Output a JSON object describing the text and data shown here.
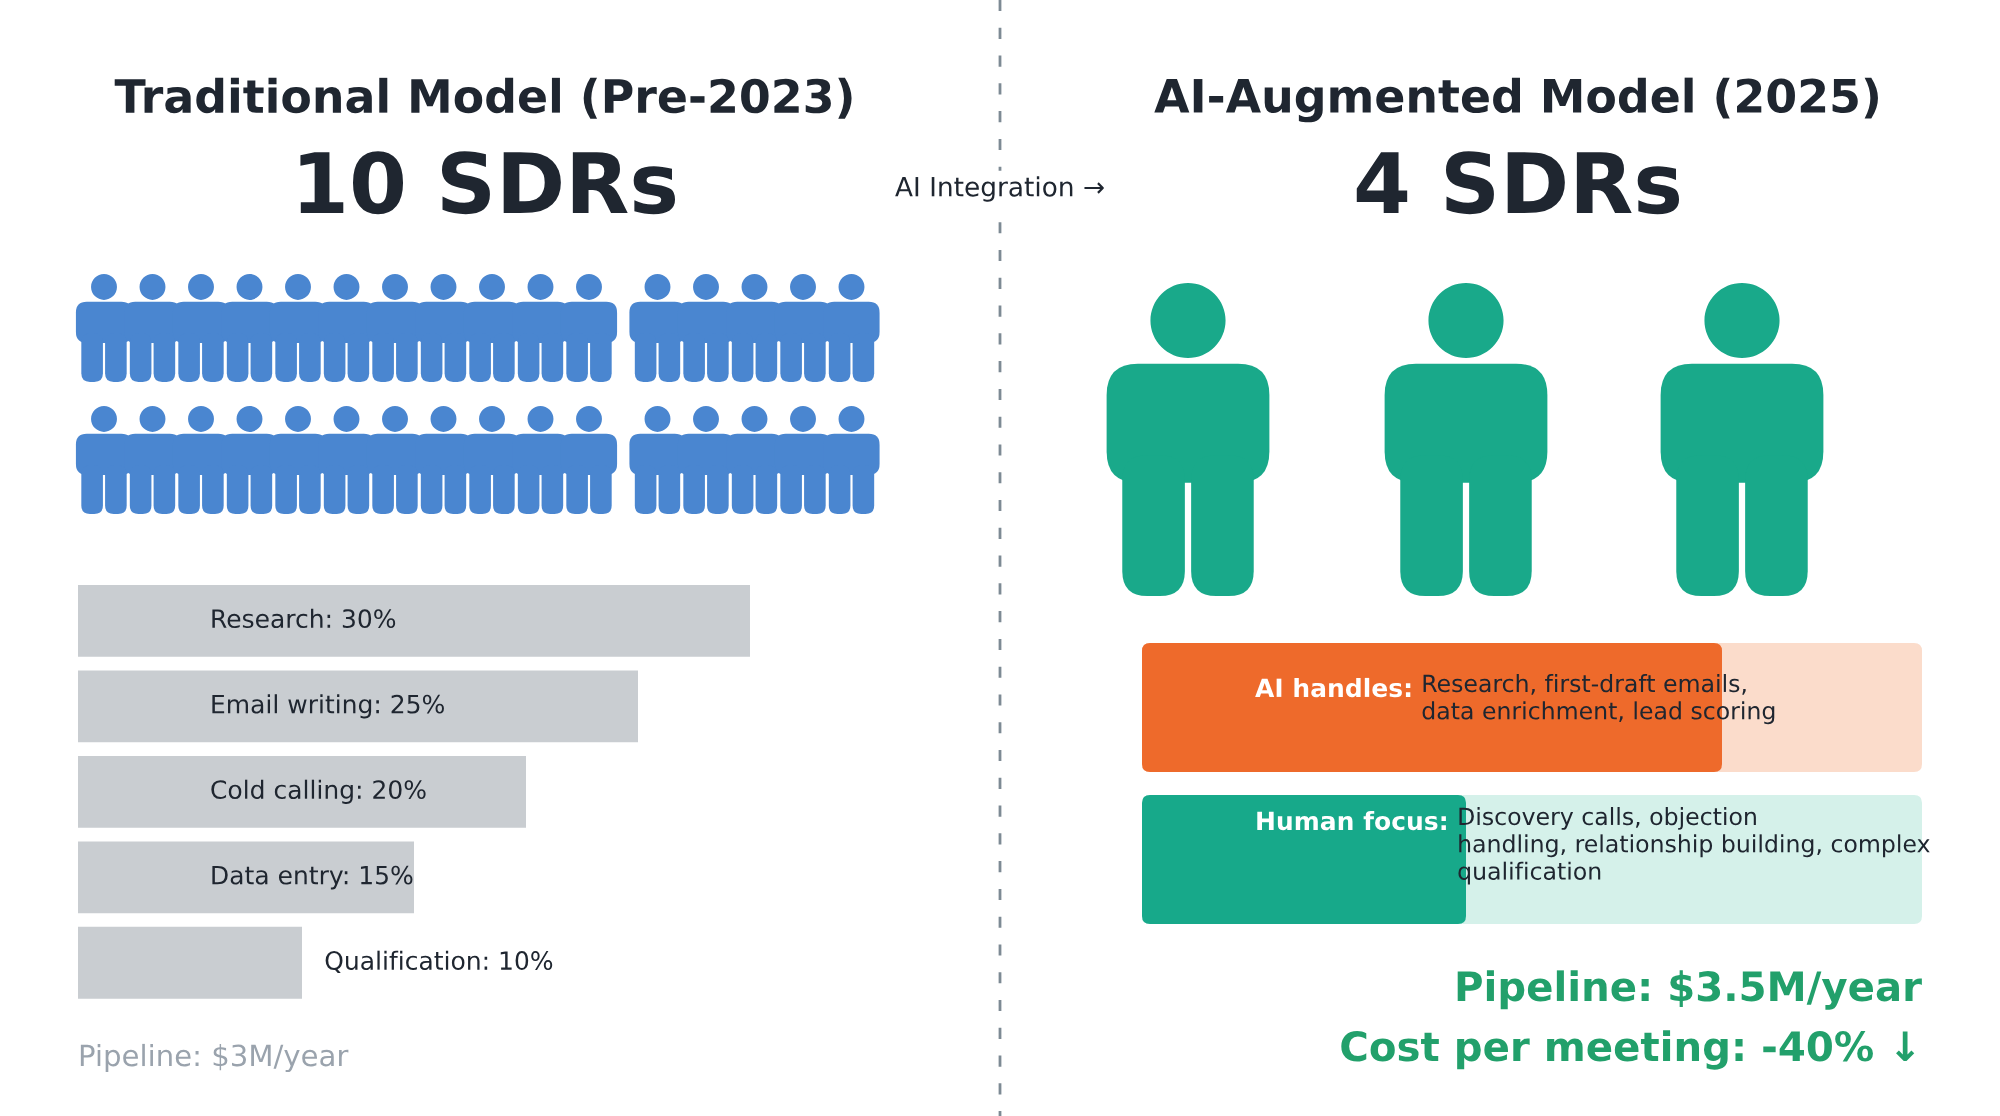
{
  "chart_data": [
    {
      "type": "bar",
      "orientation": "horizontal",
      "title": "Traditional Model (Pre-2023)",
      "subtitle": "10 SDRs",
      "categories": [
        null,
        null,
        null,
        null,
        null
      ],
      "values": [
        30,
        25,
        20,
        15,
        10
      ],
      "value_labels": [
        "Research: 30%",
        "Email writing: 25%",
        "Cold calling: 20%",
        "Data entry: 15%",
        "Qualification: 10%"
      ],
      "color": "#c9cdd1",
      "tick_labels": false,
      "annotations": [
        "Pipeline: $3M/year"
      ]
    },
    {
      "type": "other",
      "title": "AI-Augmented Model (2025)",
      "subtitle": "4 SDRs",
      "annotations": [
        "AI Integration →",
        "AI handles:",
        "Research, first-draft emails,\ndata enrichment, lead scoring",
        "Human focus:",
        "Discovery calls, objection\nhandling, relationship building, complex\nqualification",
        "Pipeline: $3.5M/year",
        "Cost per meeting: -40% ↓"
      ]
    }
  ]
}
